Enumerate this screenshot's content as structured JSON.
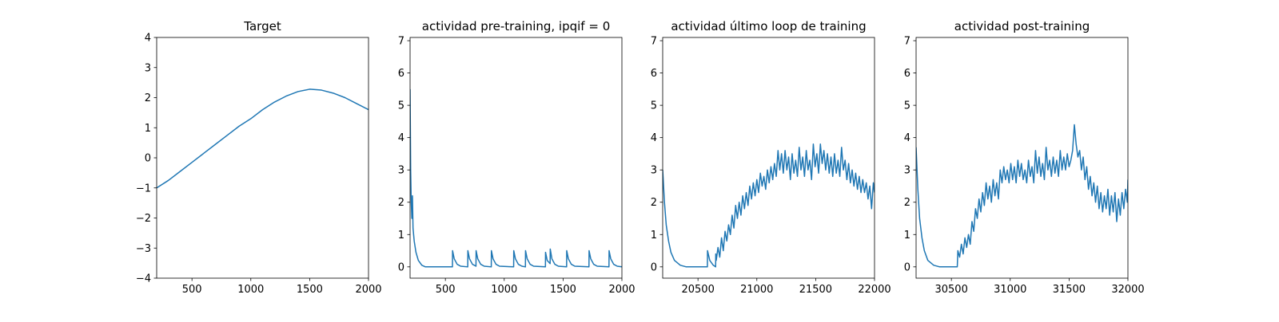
{
  "chart_data": [
    {
      "type": "line",
      "title": "Target",
      "color": "#1f77b4",
      "x": [
        200,
        300,
        400,
        500,
        600,
        700,
        800,
        900,
        1000,
        1100,
        1200,
        1300,
        1400,
        1500,
        1600,
        1700,
        1800,
        1900,
        2000
      ],
      "values": [
        -1.0,
        -0.75,
        -0.45,
        -0.15,
        0.15,
        0.45,
        0.75,
        1.05,
        1.3,
        1.6,
        1.85,
        2.05,
        2.2,
        2.28,
        2.25,
        2.15,
        2.0,
        1.8,
        1.6
      ],
      "xlim": [
        200,
        2000
      ],
      "ylim": [
        -4,
        4
      ],
      "xticks": [
        500,
        1000,
        1500,
        2000
      ],
      "yticks": [
        {
          "value": -4,
          "label": "−4"
        },
        {
          "value": -3,
          "label": "−3"
        },
        {
          "value": -2,
          "label": "−2"
        },
        {
          "value": -1,
          "label": "−1"
        },
        0,
        1,
        2,
        3,
        4
      ]
    },
    {
      "type": "line",
      "title": "actividad pre-training, ipqif = 0",
      "color": "#1f77b4",
      "x": [
        200,
        205,
        210,
        215,
        220,
        225,
        235,
        250,
        270,
        300,
        330,
        560,
        561,
        575,
        600,
        630,
        690,
        691,
        705,
        730,
        760,
        761,
        775,
        800,
        830,
        890,
        891,
        905,
        930,
        960,
        1080,
        1081,
        1095,
        1120,
        1150,
        1180,
        1181,
        1195,
        1220,
        1250,
        1350,
        1351,
        1365,
        1390,
        1391,
        1405,
        1430,
        1460,
        1530,
        1531,
        1545,
        1570,
        1600,
        1720,
        1721,
        1735,
        1760,
        1790,
        1890,
        1891,
        1905,
        1930,
        1960,
        2000
      ],
      "values": [
        5.5,
        3.0,
        2.0,
        1.5,
        2.2,
        1.2,
        0.8,
        0.45,
        0.2,
        0.05,
        0,
        0,
        0.5,
        0.25,
        0.08,
        0.02,
        0,
        0.5,
        0.25,
        0.08,
        0.02,
        0.5,
        0.25,
        0.08,
        0.02,
        0,
        0.5,
        0.25,
        0.08,
        0.02,
        0,
        0.5,
        0.25,
        0.08,
        0.02,
        0,
        0.5,
        0.25,
        0.08,
        0.02,
        0,
        0.45,
        0.2,
        0.1,
        0.55,
        0.25,
        0.08,
        0.02,
        0,
        0.5,
        0.25,
        0.08,
        0.02,
        0,
        0.5,
        0.25,
        0.08,
        0.02,
        0,
        0.5,
        0.25,
        0.08,
        0.02,
        0
      ],
      "xlim": [
        200,
        2000
      ],
      "ylim": [
        -0.35,
        7.1
      ],
      "xticks": [
        500,
        1000,
        1500,
        2000
      ],
      "yticks": [
        0,
        1,
        2,
        3,
        4,
        5,
        6,
        7
      ]
    },
    {
      "type": "line",
      "title": "actividad último loop de training",
      "color": "#1f77b4",
      "x": [
        20200,
        20215,
        20230,
        20250,
        20270,
        20300,
        20350,
        20400,
        20580,
        20581,
        20600,
        20630,
        20650,
        20651,
        20655,
        20670,
        20685,
        20700,
        20715,
        20730,
        20745,
        20760,
        20775,
        20790,
        20805,
        20820,
        20835,
        20850,
        20865,
        20880,
        20895,
        20910,
        20925,
        20940,
        20955,
        20970,
        20985,
        21000,
        21015,
        21030,
        21045,
        21060,
        21075,
        21090,
        21105,
        21120,
        21135,
        21150,
        21165,
        21180,
        21195,
        21210,
        21225,
        21240,
        21255,
        21270,
        21285,
        21300,
        21315,
        21330,
        21345,
        21360,
        21375,
        21390,
        21405,
        21420,
        21435,
        21450,
        21465,
        21480,
        21495,
        21510,
        21525,
        21540,
        21555,
        21570,
        21585,
        21600,
        21615,
        21630,
        21645,
        21660,
        21675,
        21690,
        21705,
        21720,
        21735,
        21750,
        21765,
        21780,
        21795,
        21810,
        21825,
        21840,
        21855,
        21870,
        21885,
        21900,
        21915,
        21930,
        21945,
        21960,
        21975,
        21990,
        22000
      ],
      "values": [
        3.0,
        2.0,
        1.3,
        0.8,
        0.45,
        0.2,
        0.05,
        0,
        0,
        0.5,
        0.2,
        0.05,
        0,
        0.4,
        0.2,
        0.6,
        0.3,
        0.9,
        0.5,
        1.1,
        0.8,
        1.3,
        1.0,
        1.6,
        1.2,
        1.9,
        1.5,
        2.0,
        1.6,
        2.2,
        1.8,
        2.3,
        1.9,
        2.5,
        2.1,
        2.6,
        2.2,
        2.7,
        2.3,
        2.9,
        2.5,
        2.8,
        2.4,
        3.0,
        2.6,
        3.1,
        2.7,
        3.2,
        2.8,
        3.6,
        3.0,
        3.5,
        2.9,
        3.6,
        3.0,
        3.4,
        2.7,
        3.5,
        2.9,
        3.3,
        2.8,
        3.7,
        3.0,
        3.4,
        2.8,
        3.6,
        3.0,
        3.3,
        2.7,
        3.8,
        3.1,
        3.5,
        2.9,
        3.8,
        3.2,
        3.6,
        3.0,
        3.5,
        2.9,
        3.4,
        2.8,
        3.5,
        2.9,
        3.3,
        2.8,
        3.7,
        3.0,
        3.3,
        2.7,
        3.2,
        2.6,
        3.0,
        2.5,
        2.9,
        2.4,
        2.8,
        2.3,
        2.7,
        2.3,
        2.6,
        2.1,
        2.5,
        1.8,
        2.6,
        2.3
      ],
      "xlim": [
        20200,
        22000
      ],
      "ylim": [
        -0.35,
        7.1
      ],
      "xticks": [
        20500,
        21000,
        21500,
        22000
      ],
      "yticks": [
        0,
        1,
        2,
        3,
        4,
        5,
        6,
        7
      ]
    },
    {
      "type": "line",
      "title": "actividad post-training",
      "color": "#1f77b4",
      "x": [
        30200,
        30215,
        30230,
        30250,
        30270,
        30300,
        30350,
        30400,
        30550,
        30555,
        30570,
        30585,
        30600,
        30615,
        30630,
        30645,
        30660,
        30675,
        30690,
        30705,
        30720,
        30735,
        30750,
        30765,
        30780,
        30795,
        30810,
        30825,
        30840,
        30855,
        30870,
        30885,
        30900,
        30915,
        30930,
        30945,
        30960,
        30975,
        30990,
        31005,
        31020,
        31035,
        31050,
        31065,
        31080,
        31095,
        31110,
        31125,
        31140,
        31155,
        31170,
        31185,
        31200,
        31215,
        31230,
        31245,
        31260,
        31275,
        31290,
        31305,
        31320,
        31335,
        31350,
        31365,
        31380,
        31395,
        31410,
        31425,
        31440,
        31455,
        31470,
        31485,
        31500,
        31515,
        31530,
        31545,
        31560,
        31575,
        31590,
        31605,
        31620,
        31635,
        31650,
        31665,
        31680,
        31695,
        31710,
        31725,
        31740,
        31755,
        31770,
        31785,
        31800,
        31815,
        31830,
        31845,
        31860,
        31875,
        31890,
        31905,
        31920,
        31935,
        31950,
        31965,
        31980,
        31995,
        32000
      ],
      "values": [
        3.7,
        2.4,
        1.5,
        0.9,
        0.5,
        0.2,
        0.05,
        0,
        0,
        0.5,
        0.3,
        0.7,
        0.4,
        0.9,
        0.6,
        1.0,
        0.7,
        1.4,
        1.1,
        1.8,
        1.5,
        2.1,
        1.7,
        2.3,
        1.9,
        2.6,
        2.1,
        2.5,
        2.0,
        2.7,
        2.2,
        2.6,
        2.1,
        3.0,
        2.6,
        3.1,
        2.7,
        3.0,
        2.6,
        3.2,
        2.7,
        3.1,
        2.6,
        3.3,
        2.8,
        3.2,
        2.7,
        3.0,
        2.6,
        3.3,
        2.8,
        3.1,
        2.6,
        3.6,
        2.9,
        3.4,
        2.8,
        3.2,
        2.7,
        3.7,
        3.0,
        3.3,
        2.8,
        3.4,
        2.9,
        3.3,
        2.8,
        3.6,
        3.0,
        3.4,
        3.0,
        3.5,
        3.1,
        3.3,
        3.6,
        4.4,
        3.8,
        3.4,
        3.6,
        3.0,
        3.4,
        2.7,
        3.1,
        2.4,
        2.8,
        2.2,
        2.6,
        2.0,
        2.5,
        1.8,
        2.3,
        1.7,
        2.2,
        1.8,
        2.4,
        1.6,
        2.2,
        1.7,
        2.3,
        1.4,
        2.1,
        1.6,
        2.3,
        1.8,
        2.4,
        2.0,
        2.7
      ],
      "xlim": [
        30200,
        32000
      ],
      "ylim": [
        -0.35,
        7.1
      ],
      "xticks": [
        30500,
        31000,
        31500,
        32000
      ],
      "yticks": [
        0,
        1,
        2,
        3,
        4,
        5,
        6,
        7
      ]
    }
  ]
}
